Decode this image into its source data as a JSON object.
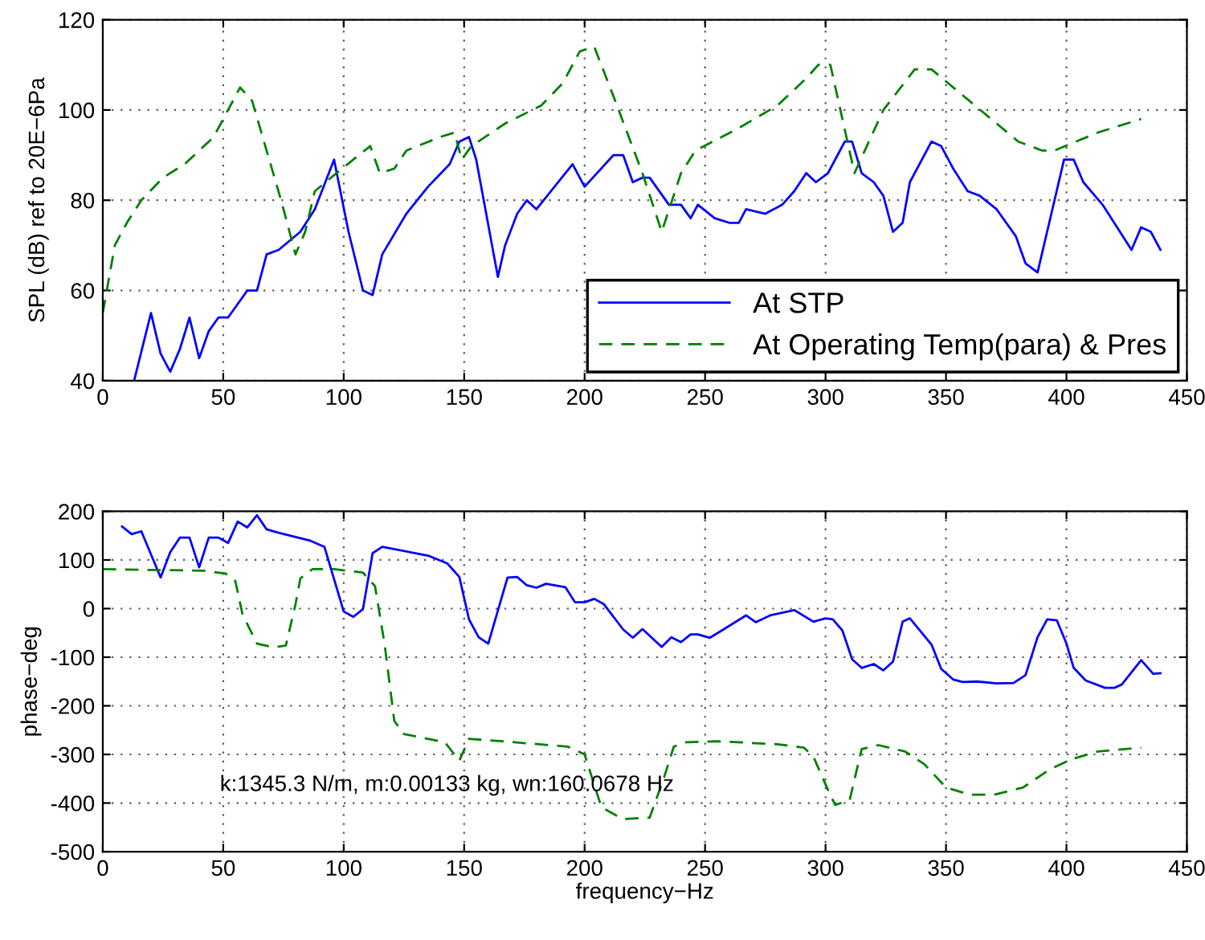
{
  "chart_data": [
    {
      "type": "line",
      "ylabel": "SPL (dB) ref to 20E−6Pa",
      "xlim": [
        0,
        450
      ],
      "ylim": [
        40,
        120
      ],
      "xticks": [
        0,
        50,
        100,
        150,
        200,
        250,
        300,
        350,
        400,
        450
      ],
      "yticks": [
        40,
        60,
        80,
        100,
        120
      ],
      "grid": true,
      "legend": "bottom right",
      "marker": "none",
      "series": [
        {
          "name": "At STP",
          "color": "#0000ff",
          "line_style": "solid",
          "x": [
            13,
            20,
            24,
            28,
            32,
            36,
            40,
            44,
            48,
            52,
            60,
            64,
            68,
            73,
            82,
            88,
            96,
            102,
            108,
            112,
            116,
            126,
            135,
            144,
            148,
            152,
            155,
            164,
            167,
            172,
            176,
            180,
            195,
            200,
            212,
            216,
            220,
            224,
            227,
            235,
            240,
            244,
            247,
            254,
            260,
            264,
            267,
            275,
            282,
            287,
            292,
            296,
            301,
            308,
            311,
            315,
            320,
            324,
            328,
            332,
            335,
            344,
            348,
            353,
            359,
            364,
            371,
            379,
            383,
            388,
            399,
            403,
            407,
            415,
            427,
            431,
            435,
            439
          ],
          "values": [
            40,
            55,
            46,
            42,
            47,
            54,
            45,
            51,
            54,
            54,
            60,
            60,
            68,
            69,
            73,
            78,
            89,
            73,
            60,
            59,
            68,
            77,
            83,
            88,
            93,
            94,
            89,
            63,
            70,
            77,
            80,
            78,
            88,
            83,
            90,
            90,
            84,
            85,
            85,
            79,
            79,
            76,
            79,
            76,
            75,
            75,
            78,
            77,
            79,
            82,
            86,
            84,
            86,
            93,
            93,
            86,
            84,
            81,
            73,
            75,
            84,
            93,
            92,
            87,
            82,
            81,
            78,
            72,
            66,
            64,
            89,
            89,
            84,
            79,
            69,
            74,
            73,
            69
          ]
        },
        {
          "name": "At Operating Temp(para) & Pres",
          "color": "#008000",
          "line_style": "dashed",
          "x": [
            0,
            5,
            10,
            16,
            25,
            34,
            46,
            57,
            62,
            74,
            80,
            84,
            88,
            97,
            111,
            115,
            121,
            126,
            140,
            146,
            149,
            153,
            167,
            182,
            191,
            198,
            204,
            212,
            224,
            232,
            240,
            246,
            264,
            280,
            292,
            297,
            302,
            312,
            324,
            337,
            344,
            362,
            380,
            390,
            395,
            413,
            431
          ],
          "values": [
            55,
            70,
            75,
            80,
            85,
            88,
            94,
            105,
            102,
            80,
            68,
            73,
            82,
            86,
            92,
            86,
            87,
            91,
            94,
            95,
            89,
            92,
            97,
            101,
            106,
            113,
            114,
            103,
            86,
            73,
            86,
            91,
            96,
            101,
            107,
            110,
            110,
            86,
            100,
            109,
            109,
            101,
            93,
            91,
            91,
            95,
            98
          ]
        }
      ]
    },
    {
      "type": "line",
      "xlabel": "frequency−Hz",
      "ylabel": "phase−deg",
      "xlim": [
        0,
        450
      ],
      "ylim": [
        -500,
        200
      ],
      "xticks": [
        0,
        50,
        100,
        150,
        200,
        250,
        300,
        350,
        400,
        450
      ],
      "yticks": [
        -500,
        -400,
        -300,
        -200,
        -100,
        0,
        100,
        200
      ],
      "grid": true,
      "legend": false,
      "marker": "none",
      "annotations": [
        "k:1345.3 N/m, m:0.00133 kg, wn:160.0678 Hz"
      ],
      "series": [
        {
          "color": "#0000ff",
          "line_style": "solid",
          "x": [
            8,
            12,
            16,
            24,
            28,
            32,
            36,
            40,
            44,
            48,
            52,
            56,
            60,
            64,
            68,
            73,
            86,
            92,
            100,
            104,
            108,
            112,
            116,
            135,
            143,
            148,
            152,
            156,
            160,
            168,
            172,
            176,
            180,
            184,
            192,
            196,
            200,
            204,
            208,
            216,
            220,
            224,
            232,
            236,
            240,
            244,
            247,
            252,
            256,
            267,
            271,
            277,
            287,
            295,
            300,
            303,
            307,
            311,
            315,
            320,
            324,
            328,
            332,
            335,
            344,
            348,
            353,
            357,
            363,
            371,
            378,
            383,
            388,
            392,
            396,
            400,
            403,
            408,
            416,
            420,
            423,
            431,
            436,
            439
          ],
          "values": [
            169,
            153,
            159,
            64,
            116,
            146,
            146,
            85,
            146,
            146,
            135,
            179,
            167,
            192,
            163,
            156,
            140,
            127,
            -6,
            -17,
            -1,
            114,
            127,
            109,
            93,
            65,
            -22,
            -59,
            -72,
            64,
            65,
            48,
            43,
            51,
            44,
            13,
            13,
            20,
            9,
            -43,
            -60,
            -42,
            -79,
            -59,
            -69,
            -53,
            -53,
            -60,
            -48,
            -14,
            -28,
            -14,
            -3,
            -27,
            -20,
            -22,
            -45,
            -104,
            -122,
            -114,
            -127,
            -109,
            -27,
            -20,
            -74,
            -124,
            -146,
            -151,
            -150,
            -154,
            -153,
            -137,
            -59,
            -22,
            -24,
            -72,
            -122,
            -148,
            -163,
            -163,
            -156,
            -106,
            -134,
            -133
          ]
        },
        {
          "color": "#008000",
          "line_style": "dashed",
          "x": [
            0,
            42,
            51,
            55,
            58,
            64,
            71,
            76,
            80,
            82,
            87,
            96,
            108,
            113,
            117,
            121,
            125,
            142,
            148,
            152,
            166,
            193,
            200,
            203,
            207,
            216,
            227,
            233,
            237,
            242,
            255,
            280,
            291,
            295,
            301,
            304,
            310,
            315,
            322,
            333,
            341,
            350,
            360,
            370,
            382,
            393,
            402,
            413,
            431
          ],
          "values": [
            81,
            78,
            72,
            57,
            -12,
            -72,
            -80,
            -76,
            9,
            62,
            81,
            81,
            74,
            46,
            -74,
            -231,
            -258,
            -275,
            -313,
            -268,
            -273,
            -284,
            -300,
            -347,
            -409,
            -433,
            -430,
            -347,
            -284,
            -275,
            -273,
            -279,
            -286,
            -305,
            -373,
            -404,
            -394,
            -289,
            -281,
            -294,
            -320,
            -368,
            -383,
            -383,
            -368,
            -331,
            -310,
            -294,
            -286
          ]
        }
      ]
    }
  ]
}
